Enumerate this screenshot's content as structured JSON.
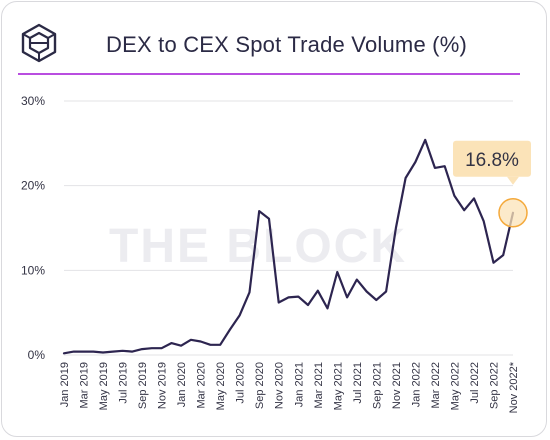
{
  "header": {
    "title": "DEX to CEX Spot Trade Volume (%)",
    "logo_icon": "the-block-cube-logo"
  },
  "watermark": "THE BLOCK",
  "colors": {
    "line": "#2d2550",
    "accent_rule": "#b94ee0",
    "callout_bg": "#fbe3b8",
    "callout_ring": "#f4a93b",
    "grid": "#e3e3e6"
  },
  "chart_data": {
    "type": "line",
    "title": "DEX to CEX Spot Trade Volume (%)",
    "xlabel": "",
    "ylabel": "",
    "ylim": [
      0,
      30
    ],
    "yticks": [
      0,
      10,
      20,
      30
    ],
    "ytick_labels": [
      "0%",
      "10%",
      "20%",
      "30%"
    ],
    "grid": "horizontal",
    "x": [
      "Jan 2019",
      "Feb 2019",
      "Mar 2019",
      "Apr 2019",
      "May 2019",
      "Jun 2019",
      "Jul 2019",
      "Aug 2019",
      "Sep 2019",
      "Oct 2019",
      "Nov 2019",
      "Dec 2019",
      "Jan 2020",
      "Feb 2020",
      "Mar 2020",
      "Apr 2020",
      "May 2020",
      "Jun 2020",
      "Jul 2020",
      "Aug 2020",
      "Sep 2020",
      "Oct 2020",
      "Nov 2020",
      "Dec 2020",
      "Jan 2021",
      "Feb 2021",
      "Mar 2021",
      "Apr 2021",
      "May 2021",
      "Jun 2021",
      "Jul 2021",
      "Aug 2021",
      "Sep 2021",
      "Oct 2021",
      "Nov 2021",
      "Dec 2021",
      "Jan 2022",
      "Feb 2022",
      "Mar 2022",
      "Apr 2022",
      "May 2022",
      "Jun 2022",
      "Jul 2022",
      "Aug 2022",
      "Sep 2022",
      "Oct 2022",
      "Nov 2022*"
    ],
    "xtick_labels": [
      "Jan 2019",
      "Mar 2019",
      "May 2019",
      "Jul 2019",
      "Sep 2019",
      "Nov 2019",
      "Jan 2020",
      "Mar 2020",
      "May 2020",
      "Jul 2020",
      "Sep 2020",
      "Nov 2020",
      "Jan 2021",
      "Mar 2021",
      "May 2021",
      "Jul 2021",
      "Sep 2021",
      "Nov 2021",
      "Jan 2022",
      "Mar 2022",
      "May 2022",
      "Jul 2022",
      "Sep 2022",
      "Nov 2022*"
    ],
    "series": [
      {
        "values": [
          0.2,
          0.4,
          0.4,
          0.4,
          0.3,
          0.4,
          0.5,
          0.4,
          0.7,
          0.8,
          0.8,
          1.4,
          1.1,
          1.8,
          1.6,
          1.2,
          1.2,
          3.0,
          4.7,
          7.4,
          17.0,
          16.1,
          6.2,
          6.8,
          6.9,
          5.9,
          7.6,
          5.5,
          9.8,
          6.8,
          8.9,
          7.5,
          6.5,
          7.5,
          15.0,
          20.9,
          22.8,
          25.4,
          22.1,
          22.3,
          18.8,
          17.1,
          18.5,
          15.8,
          10.9,
          11.8,
          16.8
        ]
      }
    ],
    "annotation": {
      "label": "16.8%",
      "at": "Nov 2022*",
      "value": 16.8
    }
  }
}
